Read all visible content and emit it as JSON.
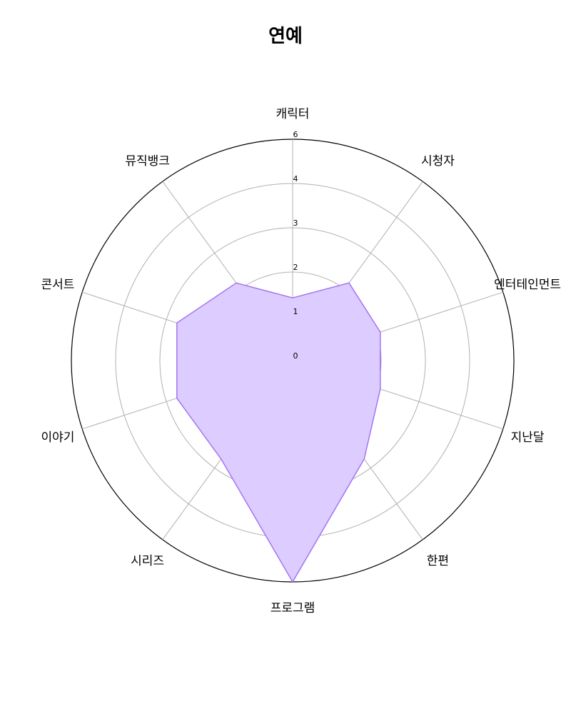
{
  "chart_data": {
    "type": "radar",
    "title": "연예",
    "categories": [
      "캐릭터",
      "시청자",
      "엔터테인먼트",
      "지난달",
      "한편",
      "프로그램",
      "시리즈",
      "이야기",
      "콘서트",
      "뮤직뱅크"
    ],
    "series": [
      {
        "values": [
          1.7,
          2.6,
          2.5,
          2.5,
          3.3,
          6,
          3.3,
          3.3,
          3.3,
          2.6
        ]
      }
    ],
    "radial_ticks": [
      "0",
      "1",
      "2",
      "3",
      "4",
      "6"
    ],
    "rmax": 6,
    "fill_color": "#ddccff",
    "line_color": "#a374f0",
    "grid": true
  }
}
